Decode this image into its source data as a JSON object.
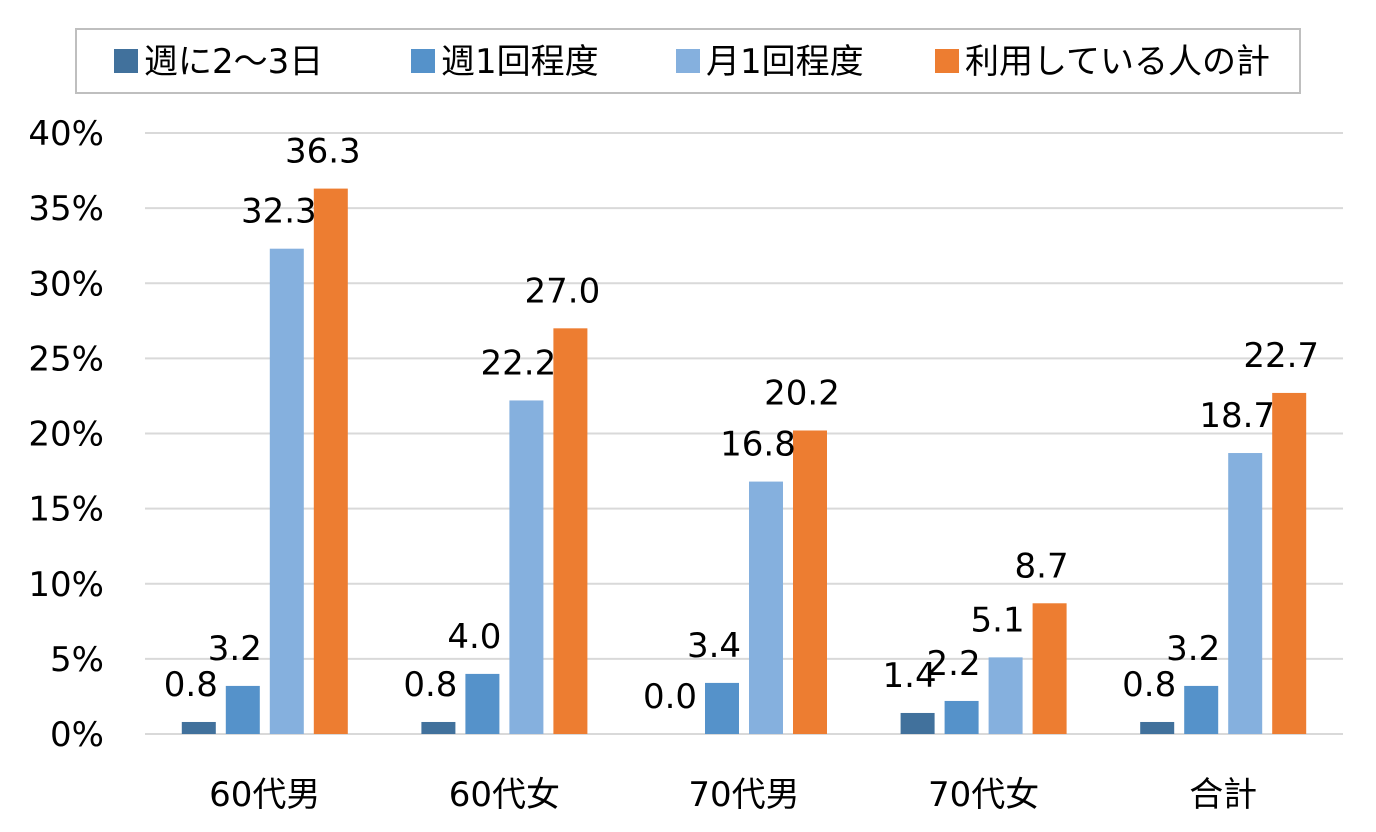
{
  "chart_data": {
    "type": "bar",
    "categories": [
      "60代男",
      "60代女",
      "70代男",
      "70代女",
      "合計"
    ],
    "series": [
      {
        "name": "週に2～3日",
        "color": "#41719c",
        "values": [
          0.8,
          0.8,
          0.0,
          1.4,
          0.8
        ],
        "labels": [
          "0.8",
          "0.8",
          "0.0",
          "1.4",
          "0.8"
        ]
      },
      {
        "name": "週1回程度",
        "color": "#5592ca",
        "values": [
          3.2,
          4.0,
          3.4,
          2.2,
          3.2
        ],
        "labels": [
          "3.2",
          "4.0",
          "3.4",
          "2.2",
          "3.2"
        ]
      },
      {
        "name": "月1回程度",
        "color": "#85b0de",
        "values": [
          32.3,
          22.2,
          16.8,
          5.1,
          18.7
        ],
        "labels": [
          "32.3",
          "22.2",
          "16.8",
          "5.1",
          "18.7"
        ]
      },
      {
        "name": "利用している人の計",
        "color": "#ed7d31",
        "values": [
          36.3,
          27.0,
          20.2,
          8.7,
          22.7
        ],
        "labels": [
          "36.3",
          "27.0",
          "20.2",
          "8.7",
          "22.7"
        ]
      }
    ],
    "yticks": [
      "0%",
      "5%",
      "10%",
      "15%",
      "20%",
      "25%",
      "30%",
      "35%",
      "40%"
    ],
    "ylim": [
      0,
      40
    ],
    "grid": true,
    "legend_position": "top"
  }
}
